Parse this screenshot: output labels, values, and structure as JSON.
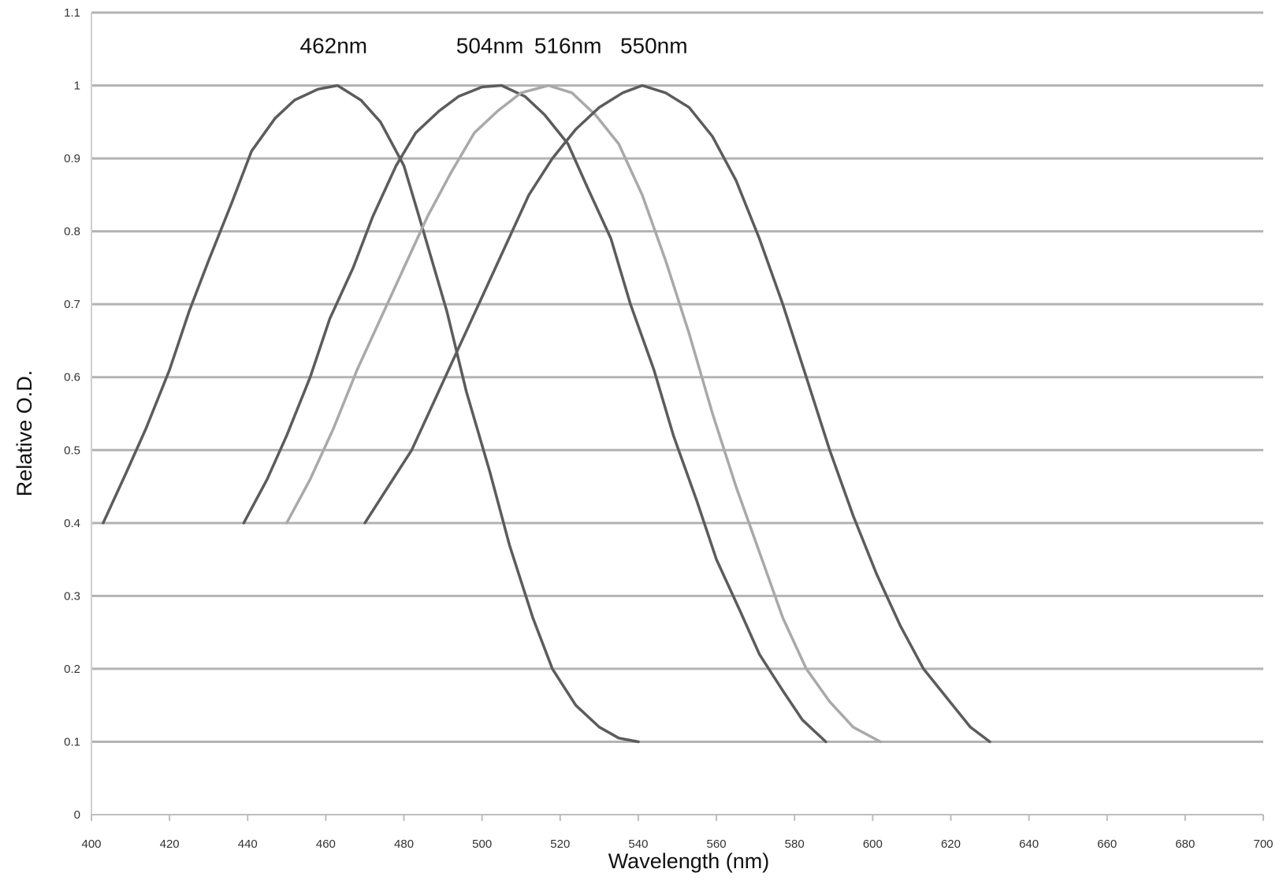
{
  "chart_data": {
    "type": "line",
    "title": "",
    "xlabel": "Wavelength (nm)",
    "ylabel": "Relative O.D.",
    "xlim": [
      400,
      700
    ],
    "ylim": [
      0,
      1.1
    ],
    "x_ticks": [
      400,
      420,
      440,
      460,
      480,
      500,
      520,
      540,
      560,
      580,
      600,
      620,
      640,
      660,
      680,
      700
    ],
    "x_tick_labels": [
      "400",
      "420",
      "440",
      "460",
      "480",
      "500",
      "520",
      "540",
      "560",
      "580",
      "600",
      "620",
      "640",
      "660",
      "680",
      "700"
    ],
    "y_ticks": [
      0,
      0.1,
      0.2,
      0.3,
      0.4,
      0.5,
      0.6,
      0.7,
      0.8,
      0.9,
      1,
      1.1
    ],
    "y_tick_labels": [
      "0",
      "0.1",
      "0.2",
      "0.3",
      "0.4",
      "0.5",
      "0.6",
      "0.7",
      "0.8",
      "0.9",
      "1",
      "1.1"
    ],
    "grid": "horizontal",
    "legend": "none",
    "annotations": [
      {
        "text": "462nm",
        "x": 462,
        "y": 1.055
      },
      {
        "text": "504nm",
        "x": 502,
        "y": 1.055
      },
      {
        "text": "516nm",
        "x": 522,
        "y": 1.055
      },
      {
        "text": "550nm",
        "x": 544,
        "y": 1.055
      }
    ],
    "series": [
      {
        "color": "#5c5c5c",
        "x": [
          403,
          409,
          414,
          420,
          425,
          430,
          436,
          441,
          447,
          452,
          458,
          463,
          469,
          474,
          480,
          485,
          491,
          496,
          502,
          507,
          513,
          518,
          524,
          530,
          535,
          540
        ],
        "y": [
          0.4,
          0.47,
          0.53,
          0.61,
          0.69,
          0.76,
          0.84,
          0.91,
          0.955,
          0.98,
          0.995,
          1.0,
          0.98,
          0.95,
          0.89,
          0.8,
          0.69,
          0.58,
          0.47,
          0.37,
          0.27,
          0.2,
          0.15,
          0.12,
          0.105,
          0.1
        ]
      },
      {
        "color": "#5c5c5c",
        "x": [
          439,
          445,
          450,
          456,
          461,
          467,
          472,
          478,
          483,
          489,
          494,
          500,
          505,
          511,
          516,
          522,
          527,
          533,
          538,
          544,
          549,
          555,
          560,
          566,
          571,
          577,
          582,
          588
        ],
        "y": [
          0.4,
          0.46,
          0.52,
          0.6,
          0.68,
          0.75,
          0.82,
          0.89,
          0.935,
          0.965,
          0.985,
          0.998,
          1.0,
          0.985,
          0.96,
          0.92,
          0.86,
          0.79,
          0.7,
          0.61,
          0.52,
          0.43,
          0.35,
          0.28,
          0.22,
          0.17,
          0.13,
          0.1
        ]
      },
      {
        "color": "#a9a9a9",
        "x": [
          450,
          456,
          462,
          468,
          474,
          480,
          486,
          492,
          498,
          504,
          510,
          517,
          523,
          529,
          535,
          541,
          547,
          553,
          559,
          565,
          571,
          577,
          583,
          589,
          595,
          602
        ],
        "y": [
          0.4,
          0.46,
          0.53,
          0.61,
          0.68,
          0.75,
          0.82,
          0.88,
          0.935,
          0.965,
          0.99,
          1.0,
          0.99,
          0.96,
          0.92,
          0.85,
          0.76,
          0.66,
          0.55,
          0.45,
          0.36,
          0.27,
          0.2,
          0.155,
          0.12,
          0.1
        ]
      },
      {
        "color": "#5c5c5c",
        "x": [
          470,
          476,
          482,
          488,
          494,
          500,
          506,
          512,
          518,
          524,
          530,
          536,
          541,
          547,
          553,
          559,
          565,
          571,
          577,
          583,
          589,
          595,
          601,
          607,
          613,
          619,
          625,
          630
        ],
        "y": [
          0.4,
          0.45,
          0.5,
          0.57,
          0.64,
          0.71,
          0.78,
          0.85,
          0.9,
          0.94,
          0.97,
          0.99,
          1.0,
          0.99,
          0.97,
          0.93,
          0.87,
          0.79,
          0.7,
          0.6,
          0.5,
          0.41,
          0.33,
          0.26,
          0.2,
          0.16,
          0.12,
          0.1
        ]
      }
    ]
  }
}
